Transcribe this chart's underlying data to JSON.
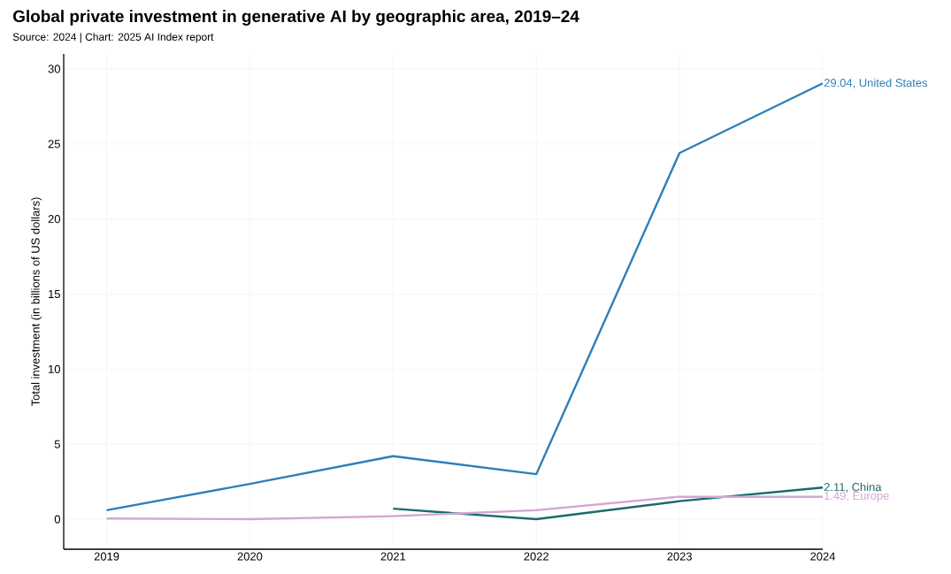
{
  "chart_data": {
    "type": "line",
    "title": "Global private investment in generative AI by geographic area, 2019–24",
    "annotations": [
      "Source: 2024 | Chart: 2025 AI Index report"
    ],
    "ylabel": "Total investment (in billions of US dollars)",
    "x": [
      2019,
      2020,
      2021,
      2022,
      2023,
      2024
    ],
    "series": [
      {
        "name": "United States",
        "color": "#2e7fb8",
        "values": [
          0.6,
          2.35,
          4.2,
          3.0,
          24.4,
          29.04
        ],
        "value_labels": [
          null,
          null,
          null,
          null,
          null,
          "29.04,"
        ]
      },
      {
        "name": "China",
        "color": "#1a6b68",
        "values": [
          null,
          null,
          0.7,
          0.0,
          1.2,
          2.11
        ],
        "value_labels": [
          null,
          null,
          null,
          null,
          null,
          "2.11,"
        ]
      },
      {
        "name": "Europe",
        "color": "#d3a6d3",
        "values": [
          0.05,
          0.0,
          0.2,
          0.6,
          1.5,
          1.49
        ],
        "value_labels": [
          null,
          null,
          null,
          null,
          null,
          "1.49,"
        ]
      }
    ],
    "xlim": [
      2018.7,
      2024
    ],
    "ylim": [
      -2,
      31
    ],
    "xticks": [
      2019,
      2020,
      2021,
      2022,
      2023,
      2024
    ],
    "yticks": [
      0,
      5,
      10,
      15,
      20,
      25,
      30
    ],
    "grid": true,
    "marker": "none",
    "line_style": "solid"
  }
}
